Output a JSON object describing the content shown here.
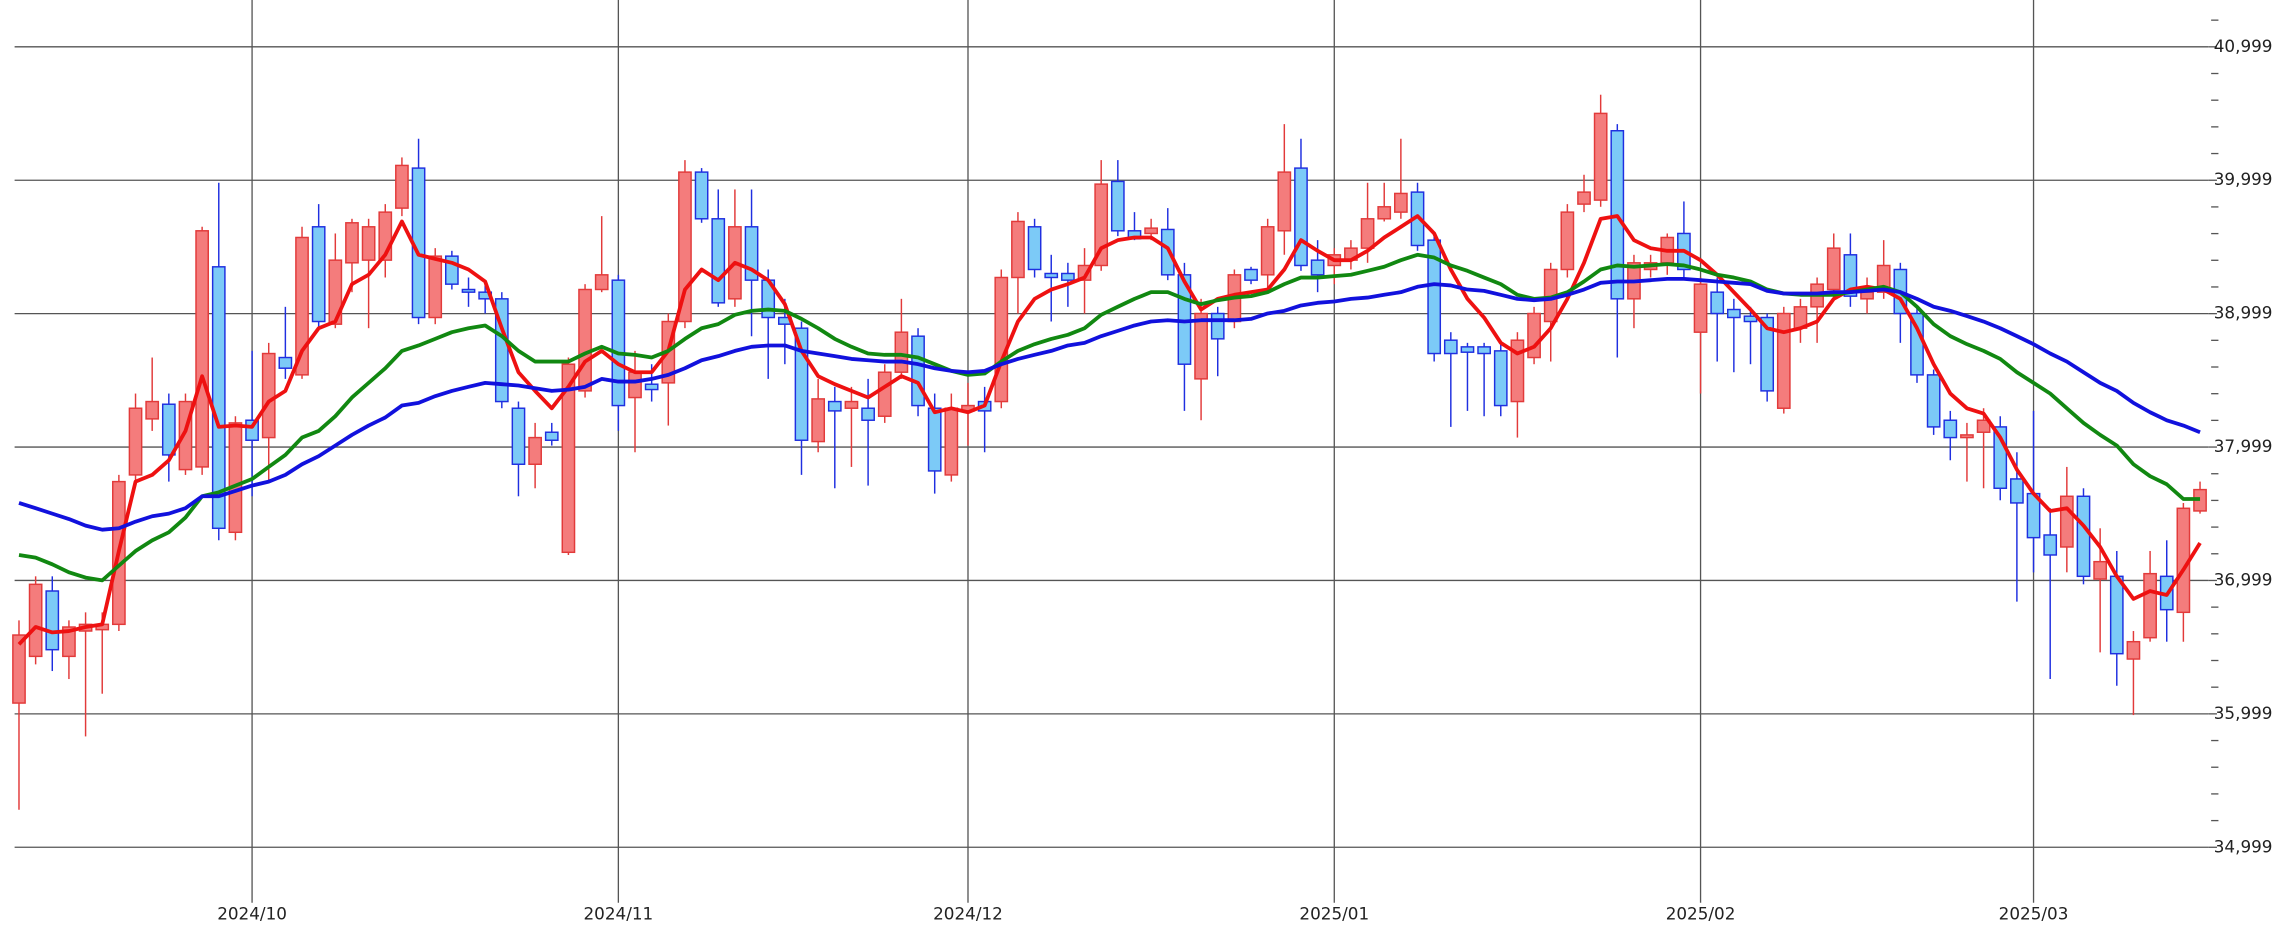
{
  "chart_data": {
    "type": "candlestick",
    "categories": [
      null,
      null,
      null,
      null,
      null,
      null,
      null,
      null,
      null,
      null,
      null,
      null,
      null,
      null,
      "2024/10",
      null,
      null,
      null,
      null,
      null,
      null,
      null,
      null,
      null,
      null,
      null,
      null,
      null,
      null,
      null,
      null,
      null,
      null,
      null,
      null,
      null,
      "2024/11",
      null,
      null,
      null,
      null,
      null,
      null,
      null,
      null,
      null,
      null,
      null,
      null,
      null,
      null,
      null,
      null,
      null,
      null,
      null,
      null,
      "2024/12",
      null,
      null,
      null,
      null,
      null,
      null,
      null,
      null,
      null,
      null,
      null,
      null,
      null,
      null,
      null,
      null,
      null,
      null,
      null,
      null,
      null,
      "2025/01",
      null,
      null,
      null,
      null,
      null,
      null,
      null,
      null,
      null,
      null,
      null,
      null,
      null,
      null,
      null,
      null,
      null,
      null,
      null,
      null,
      null,
      "2025/02",
      null,
      null,
      null,
      null,
      null,
      null,
      null,
      null,
      null,
      null,
      null,
      null,
      null,
      null,
      null,
      null,
      null,
      null,
      null,
      "2025/03",
      null,
      null,
      null,
      null,
      null,
      null,
      null,
      null,
      null,
      null
    ],
    "open": [
      36080,
      36430,
      36920,
      36430,
      36620,
      36630,
      36670,
      37790,
      38210,
      38320,
      37830,
      37850,
      39350,
      37360,
      38200,
      38070,
      38670,
      38540,
      39650,
      38920,
      39380,
      39400,
      39400,
      39790,
      40090,
      38970,
      39430,
      39180,
      39160,
      39110,
      38290,
      37870,
      38110,
      37210,
      38420,
      39180,
      39250,
      38370,
      38470,
      38480,
      38940,
      40060,
      39710,
      39110,
      39650,
      39250,
      38970,
      38890,
      38040,
      38340,
      38290,
      38290,
      38230,
      38560,
      38830,
      38290,
      37790,
      38270,
      38340,
      38340,
      39270,
      39650,
      39300,
      39300,
      39250,
      39360,
      39990,
      39620,
      39600,
      39630,
      39290,
      38510,
      39000,
      38940,
      39330,
      39290,
      39620,
      40090,
      39400,
      39360,
      39400,
      39490,
      39710,
      39760,
      39910,
      39550,
      38800,
      38750,
      38750,
      38720,
      38340,
      38670,
      38940,
      39330,
      39820,
      39850,
      40370,
      39110,
      39330,
      39380,
      39600,
      38860,
      39160,
      39030,
      38980,
      38970,
      38290,
      38890,
      39050,
      39180,
      39440,
      39110,
      39160,
      39330,
      39000,
      38540,
      38200,
      38070,
      38110,
      38150,
      37760,
      37650,
      37340,
      37250,
      37630,
      37010,
      37030,
      36410,
      36570,
      37030,
      36760,
      37520
    ],
    "high": [
      36700,
      37030,
      37030,
      36700,
      36760,
      36760,
      37790,
      38400,
      38670,
      38400,
      38400,
      39650,
      39980,
      38230,
      38720,
      38780,
      39050,
      39650,
      39820,
      39600,
      39710,
      39710,
      39820,
      40170,
      40310,
      39490,
      39470,
      39270,
      39220,
      39160,
      38340,
      38180,
      38180,
      38670,
      39220,
      39730,
      39290,
      38720,
      38620,
      39000,
      40150,
      40090,
      39930,
      39930,
      39930,
      39330,
      39110,
      38940,
      38510,
      38450,
      38450,
      38510,
      38620,
      39110,
      38890,
      38400,
      38400,
      38480,
      38450,
      39330,
      39760,
      39710,
      39440,
      39380,
      39490,
      40150,
      40150,
      39760,
      39710,
      39790,
      39380,
      39110,
      39050,
      39330,
      39350,
      39710,
      40420,
      40310,
      39550,
      39490,
      39550,
      39980,
      39980,
      40310,
      39980,
      39600,
      38860,
      38780,
      38780,
      38770,
      38860,
      39050,
      39380,
      39820,
      40040,
      40640,
      40420,
      39440,
      39440,
      39600,
      39840,
      39270,
      39270,
      39110,
      39050,
      39000,
      39050,
      39110,
      39270,
      39600,
      39600,
      39270,
      39550,
      39380,
      39050,
      38580,
      38270,
      38180,
      38290,
      38230,
      37960,
      38270,
      37540,
      37850,
      37690,
      37390,
      37220,
      36620,
      37220,
      37300,
      37580,
      37740
    ],
    "low": [
      35280,
      36370,
      36320,
      36260,
      35830,
      36150,
      36620,
      37740,
      38120,
      37740,
      37790,
      37790,
      37300,
      37300,
      37630,
      37740,
      38510,
      38510,
      38890,
      38890,
      39160,
      38890,
      39270,
      39730,
      38920,
      38920,
      39180,
      39050,
      39000,
      38290,
      37630,
      37690,
      38010,
      37190,
      38370,
      39160,
      38120,
      37960,
      38340,
      38160,
      38890,
      39680,
      39050,
      39050,
      38830,
      38510,
      38620,
      37790,
      37960,
      37690,
      37850,
      37710,
      38180,
      38510,
      38230,
      37650,
      37740,
      38010,
      37960,
      38290,
      39000,
      39270,
      38940,
      39050,
      39000,
      39320,
      39580,
      39550,
      39550,
      39250,
      38270,
      38200,
      38530,
      38890,
      39220,
      39160,
      39440,
      39320,
      39160,
      39220,
      39330,
      39380,
      39690,
      39710,
      39470,
      38640,
      38150,
      38270,
      38230,
      38230,
      38070,
      38620,
      38640,
      39270,
      39760,
      39800,
      38670,
      38890,
      39270,
      39290,
      39270,
      38400,
      38640,
      38560,
      38620,
      38340,
      38250,
      38780,
      38780,
      39110,
      39050,
      39000,
      39110,
      38780,
      38480,
      38090,
      37900,
      37740,
      37690,
      37600,
      36840,
      37060,
      36260,
      37060,
      36970,
      36460,
      36210,
      35990,
      36540,
      36540,
      36540,
      37500
    ],
    "close": [
      36590,
      36970,
      36480,
      36650,
      36670,
      36670,
      37740,
      38290,
      38340,
      37940,
      38340,
      39620,
      37390,
      38180,
      38050,
      38700,
      38590,
      39570,
      38940,
      39400,
      39680,
      39650,
      39760,
      40110,
      38970,
      39430,
      39220,
      39160,
      39110,
      38340,
      37870,
      38070,
      38050,
      38620,
      39180,
      39290,
      38310,
      38560,
      38430,
      38940,
      40060,
      39710,
      39080,
      39650,
      39250,
      38970,
      38920,
      38050,
      38360,
      38270,
      38340,
      38200,
      38560,
      38860,
      38310,
      37820,
      38290,
      38310,
      38270,
      39270,
      39690,
      39330,
      39270,
      39250,
      39360,
      39970,
      39620,
      39560,
      39640,
      39290,
      38620,
      39000,
      38810,
      39290,
      39250,
      39650,
      40060,
      39360,
      39290,
      39440,
      39490,
      39710,
      39800,
      39900,
      39510,
      38700,
      38700,
      38710,
      38700,
      38310,
      38800,
      39000,
      39330,
      39760,
      39910,
      40500,
      39110,
      39380,
      39380,
      39570,
      39330,
      39220,
      39000,
      38970,
      38940,
      38420,
      39000,
      39050,
      39220,
      39490,
      39130,
      39160,
      39360,
      39000,
      38540,
      38150,
      38070,
      38090,
      38200,
      37690,
      37580,
      37320,
      37190,
      37630,
      37030,
      37140,
      36450,
      36540,
      37050,
      36780,
      37540,
      37680
    ],
    "up_color": "#f47c7c",
    "up_edge_color": "#e23a3a",
    "down_color": "#7ccaf7",
    "down_edge_color": "#1f2fe0",
    "series": [
      {
        "color": "#ee1111",
        "values": [
          36520,
          36650,
          36610,
          36620,
          36650,
          36670,
          37220,
          37740,
          37790,
          37900,
          38120,
          38530,
          38150,
          38160,
          38150,
          38340,
          38420,
          38720,
          38890,
          38940,
          39220,
          39290,
          39440,
          39690,
          39440,
          39410,
          39380,
          39330,
          39240,
          38890,
          38560,
          38420,
          38290,
          38450,
          38640,
          38720,
          38620,
          38560,
          38560,
          38720,
          39180,
          39330,
          39250,
          39380,
          39330,
          39250,
          39070,
          38720,
          38530,
          38470,
          38420,
          38370,
          38450,
          38530,
          38480,
          38260,
          38290,
          38260,
          38310,
          38640,
          38940,
          39110,
          39180,
          39220,
          39270,
          39490,
          39550,
          39570,
          39570,
          39490,
          39240,
          39030,
          39110,
          39140,
          39160,
          39180,
          39330,
          39550,
          39470,
          39400,
          39400,
          39470,
          39570,
          39650,
          39730,
          39600,
          39330,
          39110,
          38970,
          38780,
          38700,
          38750,
          38890,
          39110,
          39380,
          39710,
          39730,
          39550,
          39490,
          39470,
          39470,
          39400,
          39290,
          39160,
          39030,
          38890,
          38860,
          38890,
          38940,
          39110,
          39180,
          39200,
          39180,
          39110,
          38890,
          38620,
          38400,
          38290,
          38250,
          38070,
          37830,
          37650,
          37520,
          37540,
          37410,
          37250,
          37030,
          36860,
          36920,
          36890,
          37080,
          37280
        ]
      },
      {
        "color": "#118811",
        "values": [
          37190,
          37170,
          37120,
          37060,
          37020,
          37000,
          37110,
          37220,
          37300,
          37360,
          37470,
          37630,
          37660,
          37710,
          37760,
          37850,
          37940,
          38070,
          38120,
          38230,
          38370,
          38480,
          38590,
          38720,
          38760,
          38810,
          38860,
          38890,
          38910,
          38830,
          38720,
          38640,
          38640,
          38640,
          38700,
          38750,
          38700,
          38690,
          38670,
          38720,
          38810,
          38890,
          38920,
          38990,
          39020,
          39030,
          39020,
          38960,
          38890,
          38810,
          38750,
          38700,
          38690,
          38690,
          38670,
          38620,
          38570,
          38540,
          38550,
          38640,
          38720,
          38770,
          38810,
          38840,
          38890,
          38990,
          39050,
          39110,
          39160,
          39160,
          39110,
          39070,
          39100,
          39120,
          39130,
          39160,
          39220,
          39270,
          39270,
          39280,
          39290,
          39320,
          39350,
          39400,
          39440,
          39420,
          39360,
          39320,
          39270,
          39220,
          39140,
          39110,
          39120,
          39160,
          39240,
          39330,
          39360,
          39350,
          39360,
          39370,
          39360,
          39330,
          39290,
          39270,
          39240,
          39180,
          39150,
          39140,
          39140,
          39140,
          39160,
          39180,
          39200,
          39160,
          39050,
          38920,
          38830,
          38770,
          38720,
          38660,
          38560,
          38480,
          38400,
          38290,
          38180,
          38090,
          38010,
          37870,
          37780,
          37720,
          37610,
          37610
        ]
      },
      {
        "color": "#1111dd",
        "values": [
          37580,
          37540,
          37500,
          37460,
          37410,
          37380,
          37390,
          37440,
          37480,
          37500,
          37540,
          37630,
          37630,
          37670,
          37710,
          37740,
          37790,
          37870,
          37930,
          38010,
          38090,
          38160,
          38220,
          38310,
          38330,
          38380,
          38420,
          38450,
          38480,
          38470,
          38460,
          38440,
          38420,
          38430,
          38450,
          38510,
          38490,
          38490,
          38510,
          38540,
          38590,
          38650,
          38680,
          38720,
          38750,
          38760,
          38760,
          38720,
          38700,
          38680,
          38660,
          38650,
          38640,
          38640,
          38620,
          38590,
          38570,
          38560,
          38570,
          38620,
          38660,
          38690,
          38720,
          38760,
          38780,
          38830,
          38870,
          38910,
          38940,
          38950,
          38940,
          38950,
          38950,
          38950,
          38960,
          39000,
          39020,
          39060,
          39080,
          39090,
          39110,
          39120,
          39140,
          39160,
          39200,
          39220,
          39210,
          39180,
          39170,
          39140,
          39110,
          39100,
          39110,
          39140,
          39180,
          39230,
          39240,
          39240,
          39250,
          39260,
          39260,
          39250,
          39240,
          39230,
          39220,
          39170,
          39150,
          39150,
          39150,
          39160,
          39160,
          39170,
          39180,
          39160,
          39110,
          39050,
          39020,
          38980,
          38940,
          38890,
          38830,
          38770,
          38700,
          38640,
          38560,
          38480,
          38420,
          38330,
          38260,
          38200,
          38160,
          38110
        ]
      }
    ],
    "ylim": [
      34780,
      41350
    ],
    "yticks": [
      {
        "value": 34999,
        "label": "34,999"
      },
      {
        "value": 35999,
        "label": "35,999"
      },
      {
        "value": 36999,
        "label": "36,999"
      },
      {
        "value": 37999,
        "label": "37,999"
      },
      {
        "value": 38999,
        "label": "38,999"
      },
      {
        "value": 39999,
        "label": "39,999"
      },
      {
        "value": 40999,
        "label": "40,999"
      }
    ],
    "yticks_minor": [
      35199,
      35399,
      35599,
      35799,
      36199,
      36399,
      36599,
      36799,
      37199,
      37399,
      37599,
      37799,
      38199,
      38399,
      38599,
      38799,
      39199,
      39399,
      39599,
      39799,
      40199,
      40399,
      40599,
      40799,
      41199
    ],
    "grid": true
  }
}
